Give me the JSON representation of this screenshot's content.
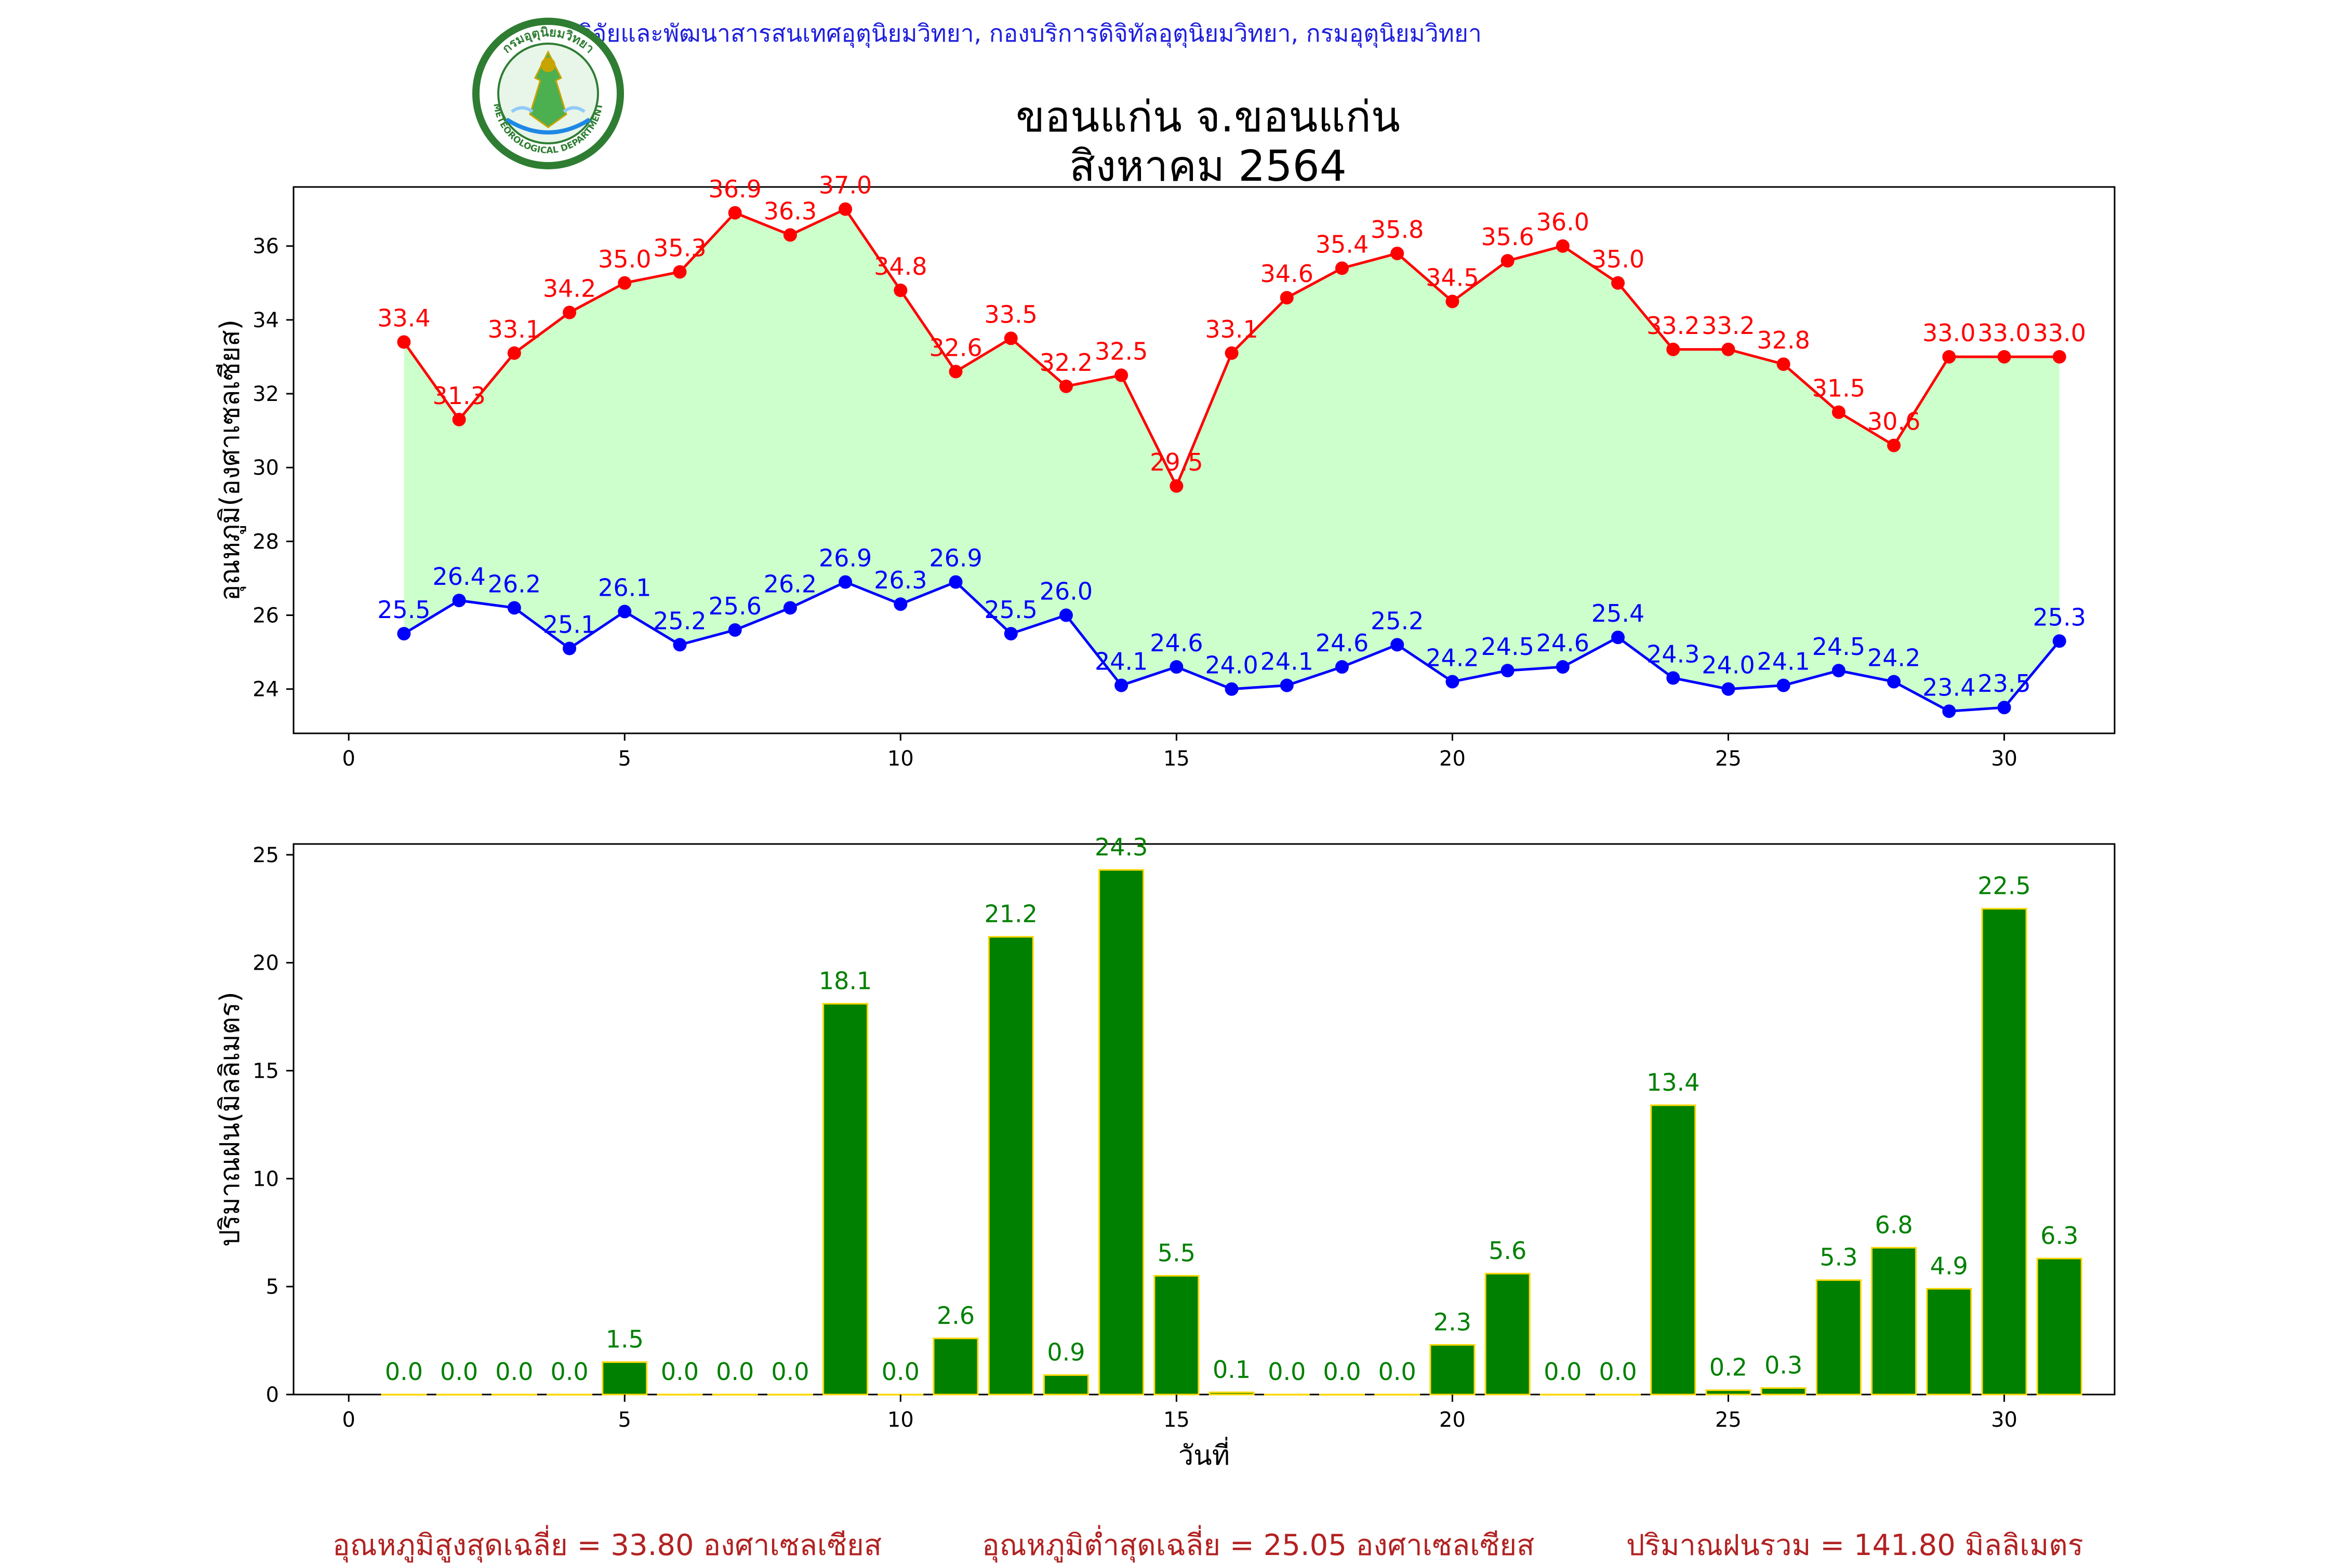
{
  "header": {
    "org_line": "กลุ่มวิจัยและพัฒนาสารสนเทศอุตุนิยมวิทยา, กองบริการดิจิทัลอุตุนิยมวิทยา, กรมอุตุนิยมวิทยา",
    "title_line1": "ขอนแก่น จ.ขอนแก่น",
    "title_line2": "สิงหาคม 2564",
    "logo_text_top": "กรมอุตุนิยมวิทยา",
    "logo_text_bottom": "METEOROLOGICAL DEPARTMENT"
  },
  "footer": {
    "avg_max": "อุณหภูมิสูงสุดเฉลี่ย = 33.80 องศาเซลเซียส",
    "avg_min": "อุณหภูมิต่ำสุดเฉลี่ย = 25.05 องศาเซลเซียส",
    "rain_total": "ปริมาณฝนรวม = 141.80 มิลลิเมตร"
  },
  "colors": {
    "max_line": "#ff0000",
    "min_line": "#0000ff",
    "fill": "#ccffcc",
    "bar_fill": "#008000",
    "bar_edge": "#ffd700",
    "bar_label": "#008000"
  },
  "chart_data": [
    {
      "type": "line",
      "ylabel": "อุณหภูมิ(องศาเซลเซียส)",
      "xlabel": "",
      "xlim": [
        -1,
        32
      ],
      "ylim": [
        22.8,
        37.6
      ],
      "xticks": [
        0,
        5,
        10,
        15,
        20,
        25,
        30
      ],
      "yticks": [
        24,
        26,
        28,
        30,
        32,
        34,
        36
      ],
      "x": [
        1,
        2,
        3,
        4,
        5,
        6,
        7,
        8,
        9,
        10,
        11,
        12,
        13,
        14,
        15,
        16,
        17,
        18,
        19,
        20,
        21,
        22,
        23,
        24,
        25,
        26,
        27,
        28,
        29,
        30,
        31
      ],
      "series": [
        {
          "key": "max",
          "values": [
            33.4,
            31.3,
            33.1,
            34.2,
            35.0,
            35.3,
            36.9,
            36.3,
            37.0,
            34.8,
            32.6,
            33.5,
            32.2,
            32.5,
            29.5,
            33.1,
            34.6,
            35.4,
            35.8,
            34.5,
            35.6,
            36.0,
            35.0,
            33.2,
            33.2,
            32.8,
            31.5,
            30.6,
            33.0,
            33.0,
            33.0
          ]
        },
        {
          "key": "min",
          "values": [
            25.5,
            26.4,
            26.2,
            25.1,
            26.1,
            25.2,
            25.6,
            26.2,
            26.9,
            26.3,
            26.9,
            25.5,
            26.0,
            24.1,
            24.6,
            24.0,
            24.1,
            24.6,
            25.2,
            24.2,
            24.5,
            24.6,
            25.4,
            24.3,
            24.0,
            24.1,
            24.5,
            24.2,
            23.4,
            23.5,
            25.3
          ]
        }
      ]
    },
    {
      "type": "bar",
      "ylabel": "ปริมาณฝน(มิลลิเมตร)",
      "xlabel": "วันที่",
      "xlim": [
        -1,
        32
      ],
      "ylim": [
        0,
        25.5
      ],
      "xticks": [
        0,
        5,
        10,
        15,
        20,
        25,
        30
      ],
      "yticks": [
        0,
        5,
        10,
        15,
        20,
        25
      ],
      "categories": [
        1,
        2,
        3,
        4,
        5,
        6,
        7,
        8,
        9,
        10,
        11,
        12,
        13,
        14,
        15,
        16,
        17,
        18,
        19,
        20,
        21,
        22,
        23,
        24,
        25,
        26,
        27,
        28,
        29,
        30,
        31
      ],
      "values": [
        0.0,
        0.0,
        0.0,
        0.0,
        1.5,
        0.0,
        0.0,
        0.0,
        18.1,
        0.0,
        2.6,
        21.2,
        0.9,
        24.3,
        5.5,
        0.1,
        0.0,
        0.0,
        0.0,
        2.3,
        5.6,
        0.0,
        0.0,
        13.4,
        0.2,
        0.3,
        5.3,
        6.8,
        4.9,
        22.5,
        6.3
      ]
    }
  ]
}
